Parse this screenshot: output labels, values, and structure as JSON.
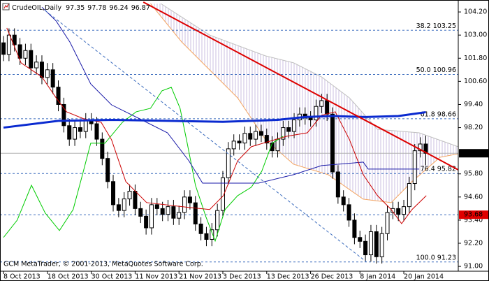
{
  "header": {
    "symbol": "CrudeOIL,Daily"
  },
  "footer": "GCM MetaTrader, © 2001-2013, MetaQuotes Software Corp.",
  "chart_data": {
    "type": "candlestick",
    "xlim": [
      -0.64,
      82.93
    ],
    "ylim": [
      90.75,
      104.82
    ],
    "xticks": [
      {
        "value": 0,
        "label": "8 Oct 2013"
      },
      {
        "value": 8,
        "label": "18 Oct 2013"
      },
      {
        "value": 16,
        "label": "30 Oct 2013"
      },
      {
        "value": 24,
        "label": "11 Nov 2013"
      },
      {
        "value": 32,
        "label": "21 Nov 2013"
      },
      {
        "value": 40,
        "label": "3 Dec 2013"
      },
      {
        "value": 48,
        "label": "13 Dec 2013"
      },
      {
        "value": 56,
        "label": "26 Dec 2013"
      },
      {
        "value": 65,
        "label": "8 Jan 2014"
      },
      {
        "value": 73,
        "label": "20 Jan 2014"
      }
    ],
    "yticks": [
      {
        "value": 104.2,
        "label": "104.20"
      },
      {
        "value": 103.0,
        "label": "103.00"
      },
      {
        "value": 101.8,
        "label": "101.80"
      },
      {
        "value": 100.6,
        "label": "100.60"
      },
      {
        "value": 99.4,
        "label": "99.40"
      },
      {
        "value": 98.2,
        "label": "98.20"
      },
      {
        "value": 95.8,
        "label": "95.80"
      },
      {
        "value": 94.6,
        "label": "94.60"
      },
      {
        "value": 93.4,
        "label": "93.40"
      },
      {
        "value": 92.2,
        "label": "92.20"
      },
      {
        "value": 91.0,
        "label": "91.00"
      }
    ],
    "up_color": "#ffffff",
    "down_color": "#000000",
    "open": [
      102.6,
      102.0,
      103.0,
      102.5,
      101.8,
      102.2,
      101.3,
      101.6,
      100.8,
      101.2,
      100.3,
      99.4,
      98.3,
      97.6,
      98.2,
      98.0,
      98.6,
      98.4,
      97.6,
      96.6,
      95.4,
      94.2,
      93.9,
      94.5,
      94.9,
      94.0,
      93.6,
      93.0,
      94.2,
      94.0,
      93.7,
      94.1,
      93.5,
      93.8,
      94.6,
      94.3,
      93.2,
      92.7,
      92.4,
      92.9,
      93.9,
      95.6,
      97.1,
      97.5,
      97.4,
      97.9,
      97.6,
      98.0,
      97.8,
      97.4,
      97.0,
      97.6,
      98.2,
      98.0,
      98.6,
      98.9,
      98.7,
      98.6,
      99.3,
      99.6,
      98.9,
      95.9,
      94.6,
      94.2,
      93.4,
      92.5,
      92.3,
      91.6,
      92.8,
      91.5,
      92.7,
      93.8,
      94.0,
      93.7,
      94.1,
      95.3,
      97.0,
      97.35
    ],
    "high": [
      102.95,
      103.35,
      103.35,
      102.85,
      102.55,
      102.55,
      101.95,
      101.95,
      101.55,
      101.55,
      100.65,
      99.75,
      98.65,
      98.55,
      98.55,
      98.95,
      98.95,
      98.75,
      97.95,
      96.95,
      95.75,
      94.55,
      94.85,
      95.25,
      95.25,
      94.35,
      93.95,
      94.55,
      94.55,
      94.35,
      94.45,
      94.45,
      94.15,
      94.95,
      94.95,
      94.65,
      93.55,
      93.05,
      93.25,
      94.25,
      95.95,
      97.45,
      97.85,
      97.85,
      98.25,
      98.25,
      98.35,
      98.35,
      98.15,
      97.75,
      97.95,
      98.55,
      98.55,
      98.95,
      99.25,
      99.25,
      99.05,
      99.65,
      99.95,
      99.95,
      99.25,
      96.25,
      94.95,
      94.55,
      93.75,
      92.85,
      92.65,
      93.15,
      93.15,
      93.05,
      94.15,
      94.35,
      94.35,
      94.45,
      95.65,
      97.35,
      97.7,
      97.78
    ],
    "low": [
      101.65,
      101.65,
      102.15,
      101.45,
      101.45,
      100.95,
      100.95,
      100.45,
      100.45,
      99.95,
      99.05,
      97.95,
      97.25,
      97.25,
      97.65,
      97.65,
      98.05,
      97.25,
      96.25,
      95.05,
      93.85,
      93.55,
      93.55,
      94.15,
      93.65,
      93.25,
      92.65,
      92.65,
      93.65,
      93.35,
      93.35,
      93.15,
      93.15,
      93.45,
      93.95,
      92.85,
      92.35,
      92.05,
      92.05,
      92.55,
      93.55,
      95.25,
      96.75,
      97.05,
      97.05,
      97.25,
      97.25,
      97.45,
      97.05,
      96.65,
      96.65,
      97.25,
      97.65,
      97.65,
      98.25,
      98.35,
      98.25,
      98.25,
      98.95,
      98.55,
      95.55,
      94.25,
      93.85,
      93.05,
      92.15,
      91.95,
      91.25,
      91.25,
      91.15,
      91.15,
      92.35,
      93.45,
      93.35,
      93.35,
      93.75,
      94.95,
      96.65,
      96.24
    ],
    "close": [
      102.0,
      103.0,
      102.5,
      101.8,
      102.2,
      101.3,
      101.6,
      100.8,
      101.2,
      100.3,
      99.4,
      98.3,
      97.6,
      98.2,
      98.0,
      98.6,
      98.4,
      97.6,
      96.6,
      95.4,
      94.2,
      93.9,
      94.5,
      94.9,
      94.0,
      93.6,
      93.0,
      94.2,
      94.0,
      93.7,
      94.1,
      93.5,
      93.8,
      94.6,
      94.3,
      93.2,
      92.7,
      92.4,
      92.9,
      93.9,
      95.6,
      97.1,
      97.5,
      97.4,
      97.9,
      97.6,
      98.0,
      97.8,
      97.4,
      97.0,
      97.6,
      98.2,
      98.0,
      98.6,
      98.9,
      98.7,
      98.6,
      99.3,
      99.6,
      98.9,
      95.9,
      94.6,
      94.2,
      93.4,
      92.5,
      92.3,
      91.6,
      92.8,
      91.5,
      92.7,
      93.8,
      94.0,
      93.7,
      94.1,
      95.3,
      97.0,
      97.35,
      96.87
    ],
    "cloud": {
      "fill_color": "#cbbfe0",
      "upper": {
        "color": "#c0c0c0",
        "x": [
          28.7,
          37.6,
          47.8,
          52.9,
          58.0,
          63.1,
          68.2,
          75.8,
          82.9
        ],
        "values": [
          104.63,
          103.0,
          101.92,
          101.56,
          100.83,
          99.74,
          98.11,
          97.93,
          97.21
        ]
      },
      "lower": {
        "color": "#f4a460",
        "x": [
          26.8,
          32.5,
          37.6,
          42.7,
          47.8,
          52.9,
          59.2,
          65.6,
          70.7,
          74.5,
          79.6,
          82.9
        ],
        "values": [
          104.63,
          102.64,
          101.19,
          99.74,
          97.57,
          96.3,
          95.76,
          94.49,
          94.31,
          95.4,
          96.66,
          96.84
        ]
      }
    },
    "lines": [
      {
        "color": "#00cc00",
        "width": 1,
        "x": [
          0,
          2.5,
          5.1,
          7.6,
          10.2,
          12.7,
          14.4,
          15.9,
          18.5,
          21.7,
          24.2,
          26.8,
          28.9,
          30.6,
          32.2,
          33.5,
          35.0,
          36.9,
          38.6,
          40.4,
          42.7,
          45.2,
          47.1,
          49.0,
          51.0
        ],
        "values": [
          92.5,
          93.4,
          95.21,
          93.77,
          92.86,
          93.95,
          95.76,
          97.39,
          97.39,
          98.48,
          99.02,
          99.2,
          100.11,
          100.29,
          99.2,
          97.39,
          95.21,
          93.58,
          92.32,
          93.95,
          94.67,
          95.11,
          95.94,
          97.39,
          97.75
        ]
      },
      {
        "color": "#1a1aa8",
        "width": 1,
        "x": [
          7.0,
          9.6,
          12.1,
          15.9,
          19.7,
          24.8,
          29.9,
          33.8,
          36.3,
          46.5,
          52.9,
          58.0,
          65.6,
          66.5,
          75.8
        ],
        "values": [
          104.45,
          103.73,
          102.64,
          100.47,
          99.38,
          98.66,
          97.93,
          96.48,
          95.32,
          95.32,
          95.76,
          96.23,
          96.41,
          96.05,
          96.05
        ]
      },
      {
        "color": "#cc0000",
        "width": 1,
        "x": [
          0.6,
          3.2,
          7.0,
          9.6,
          11.5,
          14.6,
          17.8,
          19.7,
          22.3,
          26.1,
          33.8,
          37.6,
          40.1,
          42.7,
          45.2,
          51.6,
          55.4,
          58.0,
          60.5,
          63.1,
          65.6,
          68.2,
          70.7,
          72.6,
          74.5,
          77.1
        ],
        "values": [
          103.37,
          101.56,
          100.83,
          99.74,
          99.02,
          98.66,
          98.48,
          97.57,
          95.4,
          94.31,
          94.06,
          93.95,
          94.67,
          96.48,
          97.21,
          97.75,
          97.93,
          98.84,
          99.02,
          97.57,
          95.76,
          94.67,
          93.95,
          93.22,
          93.95,
          94.67
        ]
      },
      {
        "color": "#0a2ad0",
        "width": 3,
        "x": [
          0,
          10,
          20,
          30,
          40,
          50,
          55,
          60,
          66,
          72,
          77
        ],
        "values": [
          98.2,
          98.55,
          98.6,
          98.55,
          98.5,
          98.6,
          98.75,
          98.8,
          98.75,
          98.8,
          99.0
        ]
      },
      {
        "color": "#dd0000",
        "width": 2,
        "x": [
          25.5,
          82.93
        ],
        "values": [
          104.71,
          96.01
        ]
      },
      {
        "color": "#3a6bbd",
        "width": 1,
        "dash": true,
        "x": [
          7.6,
          66.2
        ],
        "values": [
          104.27,
          91.23
        ]
      }
    ],
    "fib_color": "#3a6bbd",
    "fib_levels": [
      {
        "value": 103.25,
        "label": "38.2 103.25"
      },
      {
        "value": 100.96,
        "label": "50.0 100.96"
      },
      {
        "value": 98.66,
        "label": "61.8 98.66"
      },
      {
        "value": 95.82,
        "label": "76.4 95.82"
      },
      {
        "value": 91.23,
        "label": "100.0 91.23"
      }
    ],
    "last_price": 96.87,
    "last_price_color": "#000000",
    "marker_price": 93.68,
    "marker_color": "#e00000"
  }
}
